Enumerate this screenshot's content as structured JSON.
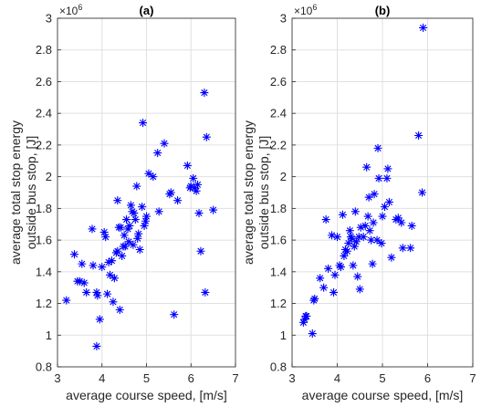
{
  "chart_data": [
    {
      "type": "scatter",
      "title": "(a)",
      "xlabel": "average course speed, [m/s]",
      "ylabel": [
        "average total stop energy",
        "outside bus stop, [J]"
      ],
      "y_multiplier_label": "×10",
      "y_multiplier_exp": "6",
      "xlim": [
        3,
        7
      ],
      "ylim": [
        0.8,
        3.0
      ],
      "xticks": [
        "3",
        "4",
        "5",
        "6",
        "7"
      ],
      "yticks": [
        "0.8",
        "1",
        "1.2",
        "1.4",
        "1.6",
        "1.8",
        "2",
        "2.2",
        "2.4",
        "2.6",
        "2.8",
        "3"
      ],
      "grid": true,
      "marker": "*",
      "color": "#0000ff",
      "points": [
        [
          3.2,
          1.22
        ],
        [
          3.38,
          1.51
        ],
        [
          3.45,
          1.34
        ],
        [
          3.5,
          1.34
        ],
        [
          3.55,
          1.45
        ],
        [
          3.6,
          1.33
        ],
        [
          3.65,
          1.27
        ],
        [
          3.78,
          1.67
        ],
        [
          3.8,
          1.44
        ],
        [
          3.88,
          1.27
        ],
        [
          3.9,
          1.25
        ],
        [
          3.88,
          0.93
        ],
        [
          3.95,
          1.1
        ],
        [
          4.0,
          1.43
        ],
        [
          4.05,
          1.65
        ],
        [
          4.08,
          1.62
        ],
        [
          4.12,
          1.26
        ],
        [
          4.15,
          1.46
        ],
        [
          4.18,
          1.38
        ],
        [
          4.22,
          1.47
        ],
        [
          4.25,
          1.21
        ],
        [
          4.28,
          1.36
        ],
        [
          4.32,
          1.52
        ],
        [
          4.35,
          1.85
        ],
        [
          4.35,
          1.53
        ],
        [
          4.38,
          1.68
        ],
        [
          4.4,
          1.16
        ],
        [
          4.42,
          1.68
        ],
        [
          4.45,
          1.5
        ],
        [
          4.48,
          1.56
        ],
        [
          4.5,
          1.63
        ],
        [
          4.52,
          1.56
        ],
        [
          4.55,
          1.73
        ],
        [
          4.58,
          1.67
        ],
        [
          4.6,
          1.59
        ],
        [
          4.62,
          1.69
        ],
        [
          4.65,
          1.82
        ],
        [
          4.68,
          1.78
        ],
        [
          4.7,
          1.57
        ],
        [
          4.72,
          1.77
        ],
        [
          4.75,
          1.73
        ],
        [
          4.78,
          1.94
        ],
        [
          4.8,
          1.61
        ],
        [
          4.82,
          1.64
        ],
        [
          4.85,
          1.54
        ],
        [
          4.9,
          1.81
        ],
        [
          4.92,
          2.34
        ],
        [
          4.95,
          1.69
        ],
        [
          4.98,
          1.72
        ],
        [
          5.0,
          1.75
        ],
        [
          5.05,
          2.02
        ],
        [
          5.15,
          2.0
        ],
        [
          5.25,
          2.15
        ],
        [
          5.28,
          1.78
        ],
        [
          5.4,
          2.21
        ],
        [
          5.52,
          1.89
        ],
        [
          5.55,
          1.9
        ],
        [
          5.62,
          1.13
        ],
        [
          5.7,
          1.85
        ],
        [
          5.92,
          2.07
        ],
        [
          5.98,
          1.93
        ],
        [
          6.0,
          1.94
        ],
        [
          6.05,
          1.99
        ],
        [
          6.08,
          1.93
        ],
        [
          6.12,
          1.91
        ],
        [
          6.15,
          1.95
        ],
        [
          6.18,
          1.77
        ],
        [
          6.22,
          1.53
        ],
        [
          6.3,
          2.53
        ],
        [
          6.32,
          1.27
        ],
        [
          6.35,
          2.25
        ],
        [
          6.5,
          1.79
        ]
      ]
    },
    {
      "type": "scatter",
      "title": "(b)",
      "xlabel": "average course speed, [m/s]",
      "ylabel": [
        "average total stop energy",
        "outside bus stop, [J]"
      ],
      "y_multiplier_label": "×10",
      "y_multiplier_exp": "6",
      "xlim": [
        3,
        7
      ],
      "ylim": [
        0.8,
        3.0
      ],
      "xticks": [
        "3",
        "4",
        "5",
        "6",
        "7"
      ],
      "yticks": [
        "0.8",
        "1",
        "1.2",
        "1.4",
        "1.6",
        "1.8",
        "2",
        "2.2",
        "2.4",
        "2.6",
        "2.8",
        "3"
      ],
      "grid": true,
      "marker": "*",
      "color": "#0000ff",
      "points": [
        [
          3.25,
          1.08
        ],
        [
          3.28,
          1.1
        ],
        [
          3.3,
          1.12
        ],
        [
          3.32,
          1.12
        ],
        [
          3.45,
          1.01
        ],
        [
          3.48,
          1.22
        ],
        [
          3.5,
          1.23
        ],
        [
          3.62,
          1.36
        ],
        [
          3.7,
          1.3
        ],
        [
          3.75,
          1.73
        ],
        [
          3.8,
          1.42
        ],
        [
          3.88,
          1.63
        ],
        [
          3.92,
          1.27
        ],
        [
          3.95,
          1.38
        ],
        [
          4.0,
          1.62
        ],
        [
          4.05,
          1.44
        ],
        [
          4.08,
          1.43
        ],
        [
          4.12,
          1.76
        ],
        [
          4.15,
          1.5
        ],
        [
          4.18,
          1.54
        ],
        [
          4.22,
          1.53
        ],
        [
          4.25,
          1.58
        ],
        [
          4.28,
          1.66
        ],
        [
          4.3,
          1.62
        ],
        [
          4.32,
          1.61
        ],
        [
          4.35,
          1.44
        ],
        [
          4.38,
          1.56
        ],
        [
          4.4,
          1.78
        ],
        [
          4.42,
          1.59
        ],
        [
          4.45,
          1.37
        ],
        [
          4.48,
          1.62
        ],
        [
          4.5,
          1.29
        ],
        [
          4.52,
          1.68
        ],
        [
          4.58,
          1.62
        ],
        [
          4.62,
          1.69
        ],
        [
          4.65,
          2.06
        ],
        [
          4.68,
          1.75
        ],
        [
          4.7,
          1.87
        ],
        [
          4.72,
          1.66
        ],
        [
          4.75,
          1.6
        ],
        [
          4.78,
          1.45
        ],
        [
          4.8,
          1.71
        ],
        [
          4.82,
          1.89
        ],
        [
          4.88,
          1.6
        ],
        [
          4.9,
          2.18
        ],
        [
          4.92,
          1.99
        ],
        [
          4.98,
          1.58
        ],
        [
          5.0,
          1.75
        ],
        [
          5.05,
          1.81
        ],
        [
          5.1,
          1.99
        ],
        [
          5.12,
          2.05
        ],
        [
          5.15,
          1.84
        ],
        [
          5.2,
          1.49
        ],
        [
          5.3,
          1.73
        ],
        [
          5.35,
          1.74
        ],
        [
          5.42,
          1.71
        ],
        [
          5.45,
          1.55
        ],
        [
          5.62,
          1.55
        ],
        [
          5.65,
          1.69
        ],
        [
          5.8,
          2.26
        ],
        [
          5.88,
          1.9
        ],
        [
          5.9,
          2.94
        ]
      ]
    }
  ]
}
